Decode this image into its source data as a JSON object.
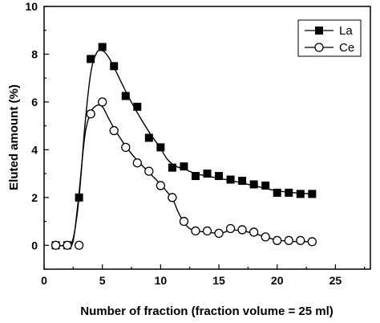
{
  "chart_data": {
    "type": "line",
    "xlabel": "Number of fraction (fraction volume = 25 ml)",
    "ylabel": "Eluted amount (%)",
    "xlim": [
      0,
      28
    ],
    "ylim": [
      -1,
      10
    ],
    "x_ticks": [
      "0",
      "5",
      "10",
      "15",
      "20",
      "25"
    ],
    "y_ticks": [
      "0",
      "2",
      "4",
      "6",
      "8",
      "10"
    ],
    "grid": false,
    "legend_position": "top-right",
    "series": [
      {
        "name": "La",
        "marker": "filled-square",
        "color": "#000000",
        "x": [
          1,
          2,
          3,
          4,
          5,
          6,
          7,
          8,
          9,
          10,
          11,
          12,
          13,
          14,
          15,
          16,
          17,
          18,
          19,
          20,
          21,
          22,
          23
        ],
        "y": [
          0,
          0,
          2.0,
          7.8,
          8.3,
          7.5,
          6.25,
          5.8,
          4.5,
          4.1,
          3.25,
          3.3,
          2.9,
          3.0,
          2.9,
          2.75,
          2.7,
          2.55,
          2.5,
          2.2,
          2.2,
          2.15,
          2.15
        ]
      },
      {
        "name": "Ce",
        "marker": "open-circle",
        "color": "#000000",
        "x": [
          1,
          2,
          3,
          4,
          5,
          6,
          7,
          8,
          9,
          10,
          11,
          12,
          13,
          14,
          15,
          16,
          17,
          18,
          19,
          20,
          21,
          22,
          23
        ],
        "y": [
          0,
          0,
          0,
          5.5,
          6.0,
          4.8,
          4.1,
          3.45,
          3.1,
          2.5,
          2.0,
          1.0,
          0.6,
          0.6,
          0.5,
          0.7,
          0.65,
          0.55,
          0.35,
          0.2,
          0.2,
          0.2,
          0.15
        ]
      }
    ],
    "curves": [
      {
        "series": "La",
        "x": [
          1,
          2,
          2.5,
          3,
          3.5,
          4,
          4.5,
          5,
          5.5,
          6,
          7,
          8,
          9,
          10,
          10.5,
          11,
          11.5,
          12,
          13,
          14,
          15,
          16,
          17,
          18,
          19,
          20,
          21,
          22,
          23
        ],
        "y": [
          0,
          0,
          0.3,
          2.0,
          5.0,
          7.2,
          8.05,
          8.15,
          7.9,
          7.45,
          6.45,
          5.55,
          4.75,
          4.05,
          3.65,
          3.4,
          3.27,
          3.2,
          3.0,
          2.9,
          2.8,
          2.72,
          2.6,
          2.5,
          2.38,
          2.28,
          2.22,
          2.18,
          2.15
        ]
      },
      {
        "series": "Ce",
        "x": [
          1,
          2,
          2.5,
          3,
          3.5,
          4,
          4.5,
          5,
          5.5,
          6,
          7,
          8,
          9,
          10,
          11,
          11.5,
          12,
          12.5,
          13,
          14,
          15,
          15.5,
          16,
          17,
          18,
          19,
          20,
          21,
          22,
          23
        ],
        "y": [
          0,
          0,
          0.2,
          2.2,
          4.6,
          5.55,
          5.85,
          5.8,
          5.35,
          4.9,
          4.15,
          3.55,
          3.05,
          2.55,
          1.95,
          1.4,
          0.95,
          0.7,
          0.6,
          0.55,
          0.5,
          0.55,
          0.65,
          0.6,
          0.5,
          0.35,
          0.22,
          0.17,
          0.15,
          0.15
        ]
      }
    ]
  }
}
